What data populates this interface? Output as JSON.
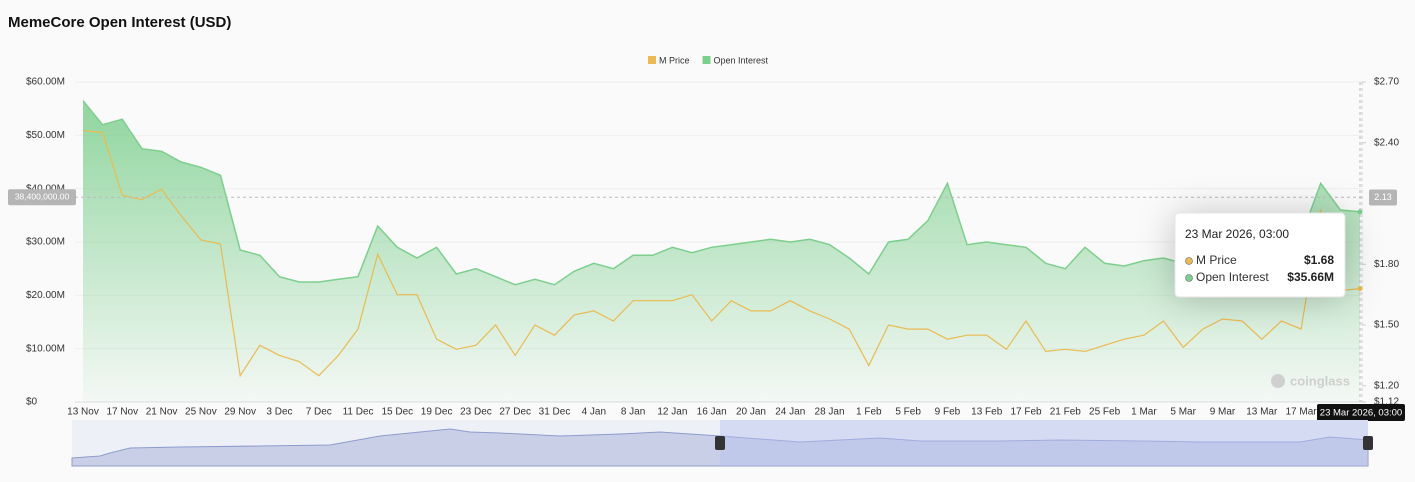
{
  "chart_data": {
    "type": "line",
    "title": "MemeCore Open Interest (USD)",
    "categories": [
      "13 Nov",
      null,
      "17 Nov",
      null,
      "21 Nov",
      null,
      "25 Nov",
      null,
      "29 Nov",
      null,
      "3 Dec",
      null,
      "7 Dec",
      null,
      "11 Dec",
      null,
      "15 Dec",
      null,
      "19 Dec",
      null,
      "23 Dec",
      null,
      "27 Dec",
      null,
      "31 Dec",
      null,
      "4 Jan",
      null,
      "8 Jan",
      null,
      "12 Jan",
      null,
      "16 Jan",
      null,
      "20 Jan",
      null,
      "24 Jan",
      null,
      "28 Jan",
      null,
      "1 Feb",
      null,
      "5 Feb",
      null,
      "9 Feb",
      null,
      "13 Feb",
      null,
      "17 Feb",
      null,
      "21 Feb",
      null,
      "25 Feb",
      null,
      "1 Mar",
      null,
      "5 Mar",
      null,
      "9 Mar",
      null,
      "13 Mar",
      null,
      "17 Mar",
      null,
      null,
      null
    ],
    "series": [
      {
        "name": "M Price",
        "color": "#e9bb52",
        "axis": "y2",
        "values": [
          2.46,
          2.45,
          2.14,
          2.12,
          2.17,
          2.04,
          1.92,
          1.9,
          1.25,
          1.4,
          1.35,
          1.32,
          1.25,
          1.35,
          1.48,
          1.85,
          1.65,
          1.65,
          1.43,
          1.38,
          1.4,
          1.5,
          1.35,
          1.5,
          1.45,
          1.55,
          1.57,
          1.52,
          1.62,
          1.62,
          1.62,
          1.65,
          1.52,
          1.62,
          1.57,
          1.57,
          1.62,
          1.57,
          1.53,
          1.48,
          1.3,
          1.5,
          1.48,
          1.48,
          1.43,
          1.45,
          1.45,
          1.38,
          1.52,
          1.37,
          1.38,
          1.37,
          1.4,
          1.43,
          1.45,
          1.52,
          1.39,
          1.48,
          1.53,
          1.52,
          1.43,
          1.52,
          1.48,
          2.07,
          1.67,
          1.68
        ]
      },
      {
        "name": "Open Interest",
        "color": "#7dcf8e",
        "area": true,
        "values": [
          56500000,
          52000000,
          53000000,
          47500000,
          47000000,
          45000000,
          44000000,
          42500000,
          28500000,
          27500000,
          23500000,
          22500000,
          22500000,
          23000000,
          23500000,
          33000000,
          29000000,
          27000000,
          29000000,
          24000000,
          25000000,
          23500000,
          22000000,
          23000000,
          22000000,
          24500000,
          26000000,
          25000000,
          27500000,
          27500000,
          29000000,
          28000000,
          29000000,
          29500000,
          30000000,
          30500000,
          30000000,
          30500000,
          29500000,
          27000000,
          24000000,
          30000000,
          30500000,
          34000000,
          41000000,
          29500000,
          30000000,
          29500000,
          29000000,
          26000000,
          25000000,
          29000000,
          26000000,
          25500000,
          26500000,
          27000000,
          26000000,
          27000000,
          26500000,
          28000000,
          27000000,
          26500000,
          31000000,
          41000000,
          36000000,
          35660000
        ]
      }
    ],
    "ylim": [
      0,
      60000000
    ],
    "yticks": [
      {
        "value": 0,
        "label": "$0"
      },
      {
        "value": 10000000,
        "label": "$10.00M"
      },
      {
        "value": 20000000,
        "label": "$20.00M"
      },
      {
        "value": 30000000,
        "label": "$30.00M"
      },
      {
        "value": 40000000,
        "label": "$40.00M"
      },
      {
        "value": 50000000,
        "label": "$50.00M"
      },
      {
        "value": 60000000,
        "label": "$60.00M"
      }
    ],
    "y2lim": [
      1.12,
      2.7
    ],
    "y2ticks": [
      {
        "value": 1.12,
        "label": "$1.12"
      },
      {
        "value": 1.2,
        "label": "$1.20"
      },
      {
        "value": 1.5,
        "label": "$1.50"
      },
      {
        "value": 1.8,
        "label": "$1.80"
      },
      {
        "value": 2.4,
        "label": "$2.40"
      },
      {
        "value": 2.7,
        "label": "$2.70"
      }
    ],
    "grid": true,
    "legend": "top",
    "crosshair": {
      "value": 38400000,
      "label": "38,400,000.00",
      "y2": 2.13
    },
    "tooltip": {
      "title": "23 Mar 2026, 03:00",
      "value_labels": [
        "$1.68",
        "$35.66M"
      ]
    },
    "watermark": "coinglass"
  }
}
